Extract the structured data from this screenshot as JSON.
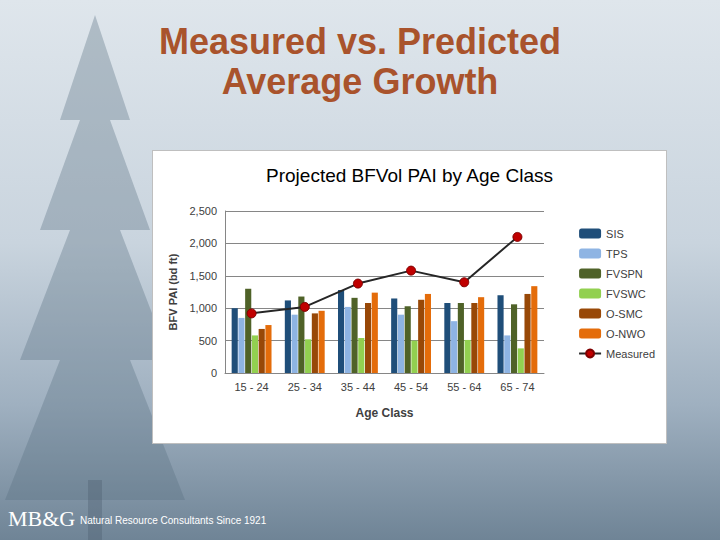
{
  "slide": {
    "title": "Measured vs. Predicted Average Growth",
    "logo": "MB&G",
    "footer": "Natural Resource Consultants Since 1921"
  },
  "chart_data": {
    "type": "bar",
    "title": "Projected BFVol PAI by Age Class",
    "x_label": "Age Class",
    "y_label": "BFV PAI (bd ft)",
    "categories": [
      "15 - 24",
      "25 - 34",
      "35 - 44",
      "45 - 54",
      "55 - 64",
      "65 - 74"
    ],
    "series": [
      {
        "name": "SIS",
        "color": "#1f4e79",
        "values": [
          1000,
          1120,
          1280,
          1150,
          1080,
          1200
        ]
      },
      {
        "name": "TPS",
        "color": "#8eb4e3",
        "values": [
          850,
          900,
          1020,
          900,
          800,
          580
        ]
      },
      {
        "name": "FVSPN",
        "color": "#4f6228",
        "values": [
          1300,
          1180,
          1160,
          1030,
          1080,
          1060
        ]
      },
      {
        "name": "FVSWC",
        "color": "#92d050",
        "values": [
          580,
          520,
          540,
          500,
          510,
          380
        ]
      },
      {
        "name": "O-SMC",
        "color": "#984807",
        "values": [
          680,
          920,
          1080,
          1130,
          1080,
          1220
        ]
      },
      {
        "name": "O-NWO",
        "color": "#e46c0a",
        "values": [
          740,
          960,
          1240,
          1220,
          1170,
          1340
        ]
      },
      {
        "name": "Measured",
        "type": "line",
        "color": "#c00000",
        "marker": "circle",
        "values": [
          920,
          1020,
          1380,
          1580,
          1400,
          2100
        ]
      }
    ],
    "ylim": [
      0,
      2500
    ],
    "yticks": [
      0,
      500,
      {
        "value": 1000,
        "label": "1,000"
      },
      {
        "value": 1500,
        "label": "1,500"
      },
      {
        "value": 2000,
        "label": "2,000"
      },
      {
        "value": 2500,
        "label": "2,500"
      }
    ],
    "grid": true,
    "legend": "right"
  }
}
